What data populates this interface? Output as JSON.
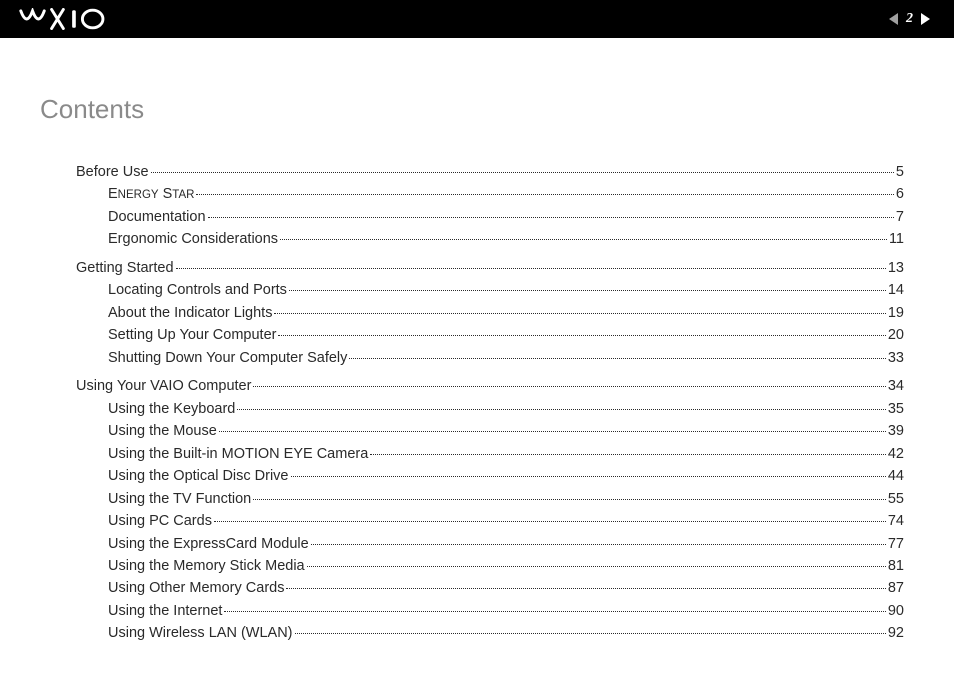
{
  "header": {
    "page_number": "2"
  },
  "title": "Contents",
  "toc": [
    {
      "label": "Before Use",
      "page": "5",
      "level": 0
    },
    {
      "label": "ENERGY STAR",
      "page": "6",
      "level": 1,
      "smallcaps": true
    },
    {
      "label": "Documentation",
      "page": "7",
      "level": 1
    },
    {
      "label": "Ergonomic Considerations",
      "page": "11",
      "level": 1
    },
    {
      "gap": true
    },
    {
      "label": "Getting Started",
      "page": "13",
      "level": 0
    },
    {
      "label": "Locating Controls and Ports",
      "page": "14",
      "level": 1
    },
    {
      "label": "About the Indicator Lights",
      "page": "19",
      "level": 1
    },
    {
      "label": "Setting Up Your Computer",
      "page": "20",
      "level": 1
    },
    {
      "label": "Shutting Down Your Computer Safely",
      "page": "33",
      "level": 1
    },
    {
      "gap": true
    },
    {
      "label": "Using Your VAIO Computer",
      "page": "34",
      "level": 0
    },
    {
      "label": "Using the Keyboard",
      "page": "35",
      "level": 1
    },
    {
      "label": "Using the Mouse",
      "page": "39",
      "level": 1
    },
    {
      "label": "Using the Built-in MOTION EYE Camera",
      "page": "42",
      "level": 1
    },
    {
      "label": "Using the Optical Disc Drive",
      "page": "44",
      "level": 1
    },
    {
      "label": "Using the TV Function",
      "page": "55",
      "level": 1
    },
    {
      "label": "Using PC Cards",
      "page": "74",
      "level": 1
    },
    {
      "label": "Using the ExpressCard Module",
      "page": "77",
      "level": 1
    },
    {
      "label": "Using the Memory Stick Media",
      "page": "81",
      "level": 1
    },
    {
      "label": "Using Other Memory Cards",
      "page": "87",
      "level": 1
    },
    {
      "label": "Using the Internet",
      "page": "90",
      "level": 1
    },
    {
      "label": "Using Wireless LAN (WLAN)",
      "page": "92",
      "level": 1
    }
  ]
}
